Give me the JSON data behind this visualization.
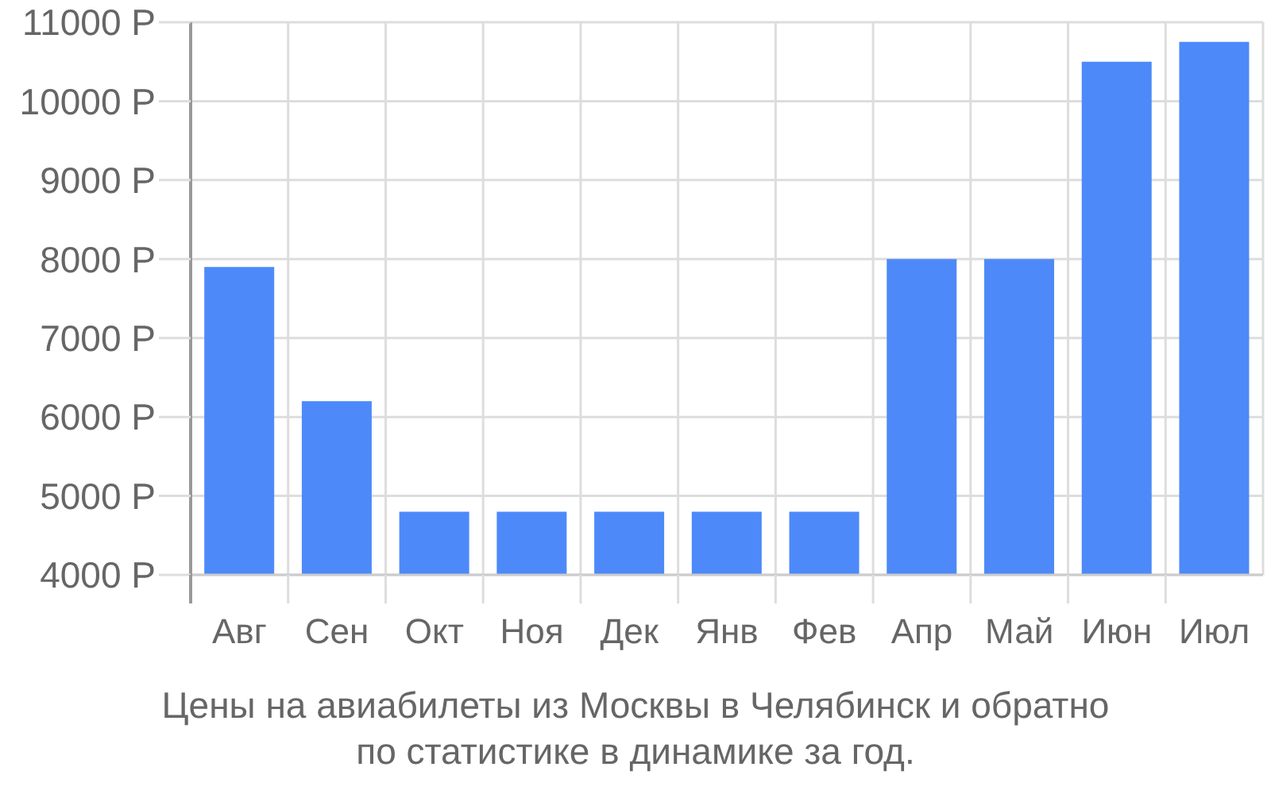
{
  "chart_data": {
    "type": "bar",
    "categories": [
      "Авг",
      "Сен",
      "Окт",
      "Ноя",
      "Дек",
      "Янв",
      "Фев",
      "Апр",
      "Май",
      "Июн",
      "Июл"
    ],
    "values": [
      7900,
      6200,
      4800,
      4800,
      4800,
      4800,
      4800,
      8000,
      8000,
      10500,
      10750
    ],
    "color": "#4d89f9",
    "ylim": [
      4000,
      11000
    ],
    "yticks": [
      {
        "value": 4000,
        "label": "4000 Р"
      },
      {
        "value": 5000,
        "label": "5000 Р"
      },
      {
        "value": 6000,
        "label": "6000 Р"
      },
      {
        "value": 7000,
        "label": "7000 Р"
      },
      {
        "value": 8000,
        "label": "8000 Р"
      },
      {
        "value": 9000,
        "label": "9000 Р"
      },
      {
        "value": 10000,
        "label": "10000 Р"
      },
      {
        "value": 11000,
        "label": "11000 Р"
      }
    ],
    "grid": true,
    "annotations": [
      "Цены на авиабилеты из Москвы в Челябинск и обратно по статистике в динамике за год."
    ]
  }
}
